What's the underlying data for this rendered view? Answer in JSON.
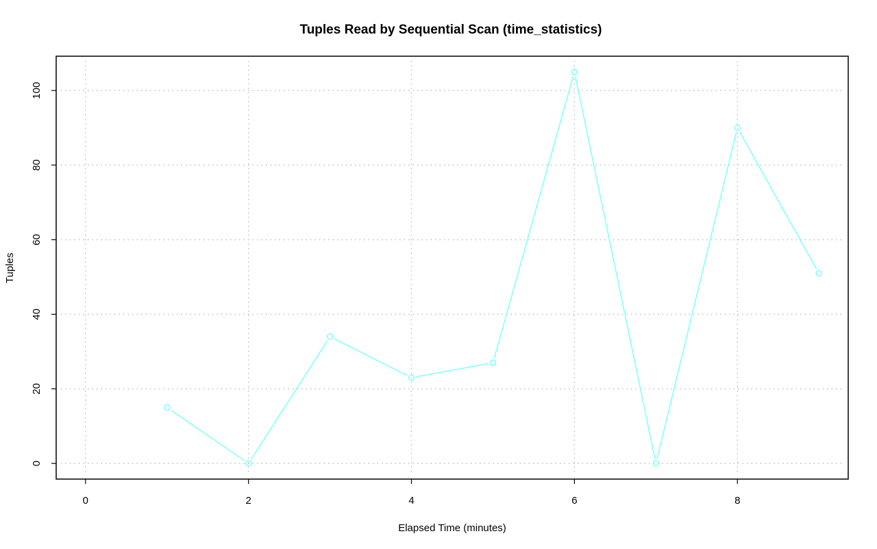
{
  "chart_data": {
    "type": "line",
    "title": "Tuples Read by Sequential Scan (time_statistics)",
    "xlabel": "Elapsed Time (minutes)",
    "ylabel": "Tuples",
    "x": [
      1,
      2,
      3,
      4,
      5,
      6,
      7,
      8,
      9
    ],
    "series": [
      {
        "values": [
          15,
          0,
          34,
          23,
          27,
          105,
          0,
          90,
          51
        ],
        "color": "#7fffff",
        "marker": "open-circle"
      }
    ],
    "xlim": [
      -0.36,
      9.36
    ],
    "ylim": [
      -4.2,
      109.2
    ],
    "x_ticks": [
      0,
      2,
      4,
      6,
      8
    ],
    "x_tick_labels": [
      "0",
      "2",
      "4",
      "6",
      "8"
    ],
    "y_ticks": [
      0,
      20,
      40,
      60,
      80,
      100
    ],
    "y_tick_labels": [
      "0",
      "20",
      "40",
      "60",
      "80",
      "100"
    ],
    "grid": true,
    "grid_color": "#bebebe",
    "grid_style": "dotted",
    "legend": "none"
  }
}
